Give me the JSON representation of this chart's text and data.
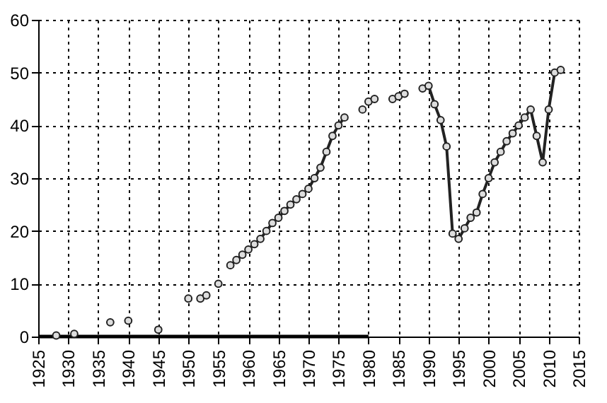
{
  "chart_data": {
    "type": "line",
    "marker": "circle",
    "line_style": "solid",
    "grid": true,
    "xlim": [
      1925,
      2015
    ],
    "xticks": [
      1925,
      1930,
      1935,
      1940,
      1945,
      1950,
      1955,
      1960,
      1965,
      1970,
      1975,
      1980,
      1985,
      1990,
      1995,
      2000,
      2005,
      2010,
      2015
    ],
    "ylim": [
      0,
      60
    ],
    "yticks": [
      0,
      10,
      20,
      30,
      40,
      50,
      60
    ],
    "series": [
      {
        "color": "#000000",
        "marker": "none",
        "x": [
          1925,
          1980
        ],
        "values": [
          0,
          0
        ]
      },
      {
        "type": "scatter",
        "color": "#222222",
        "x": [
          1928,
          1931,
          1937,
          1940,
          1945,
          1950,
          1952,
          1953,
          1955,
          1979,
          1980,
          1981,
          1984,
          1985,
          1986
        ],
        "values": [
          0.2,
          0.5,
          2.7,
          3,
          1.3,
          7.2,
          7.2,
          7.8,
          10,
          43,
          44.5,
          45,
          45,
          45.5,
          46
        ]
      },
      {
        "color": "#222222",
        "x": [
          1957,
          1958,
          1959,
          1960,
          1961,
          1962,
          1963,
          1964,
          1965,
          1966,
          1967,
          1968,
          1969,
          1970,
          1971,
          1972,
          1973,
          1974,
          1975,
          1976,
          1977,
          1989,
          1990,
          1991,
          1992,
          1993,
          1994,
          1995,
          1996,
          1997,
          1998,
          1999,
          2000,
          2001,
          2002,
          2003,
          2004,
          2005,
          2006,
          2007,
          2008,
          2009,
          2010,
          2011,
          2012
        ],
        "values": [
          13.5,
          14.5,
          15.5,
          16.5,
          17.5,
          18.5,
          20,
          21.5,
          22.5,
          23.8,
          25,
          26,
          27,
          28,
          30,
          32,
          35,
          38,
          40,
          41.5,
          null,
          47,
          47.5,
          44,
          41,
          36,
          19.5,
          18.5,
          20.5,
          22.5,
          23.5,
          27,
          30,
          33,
          35,
          37,
          38.5,
          40,
          41.5,
          43,
          38,
          33,
          43,
          50,
          50.5
        ]
      }
    ]
  }
}
